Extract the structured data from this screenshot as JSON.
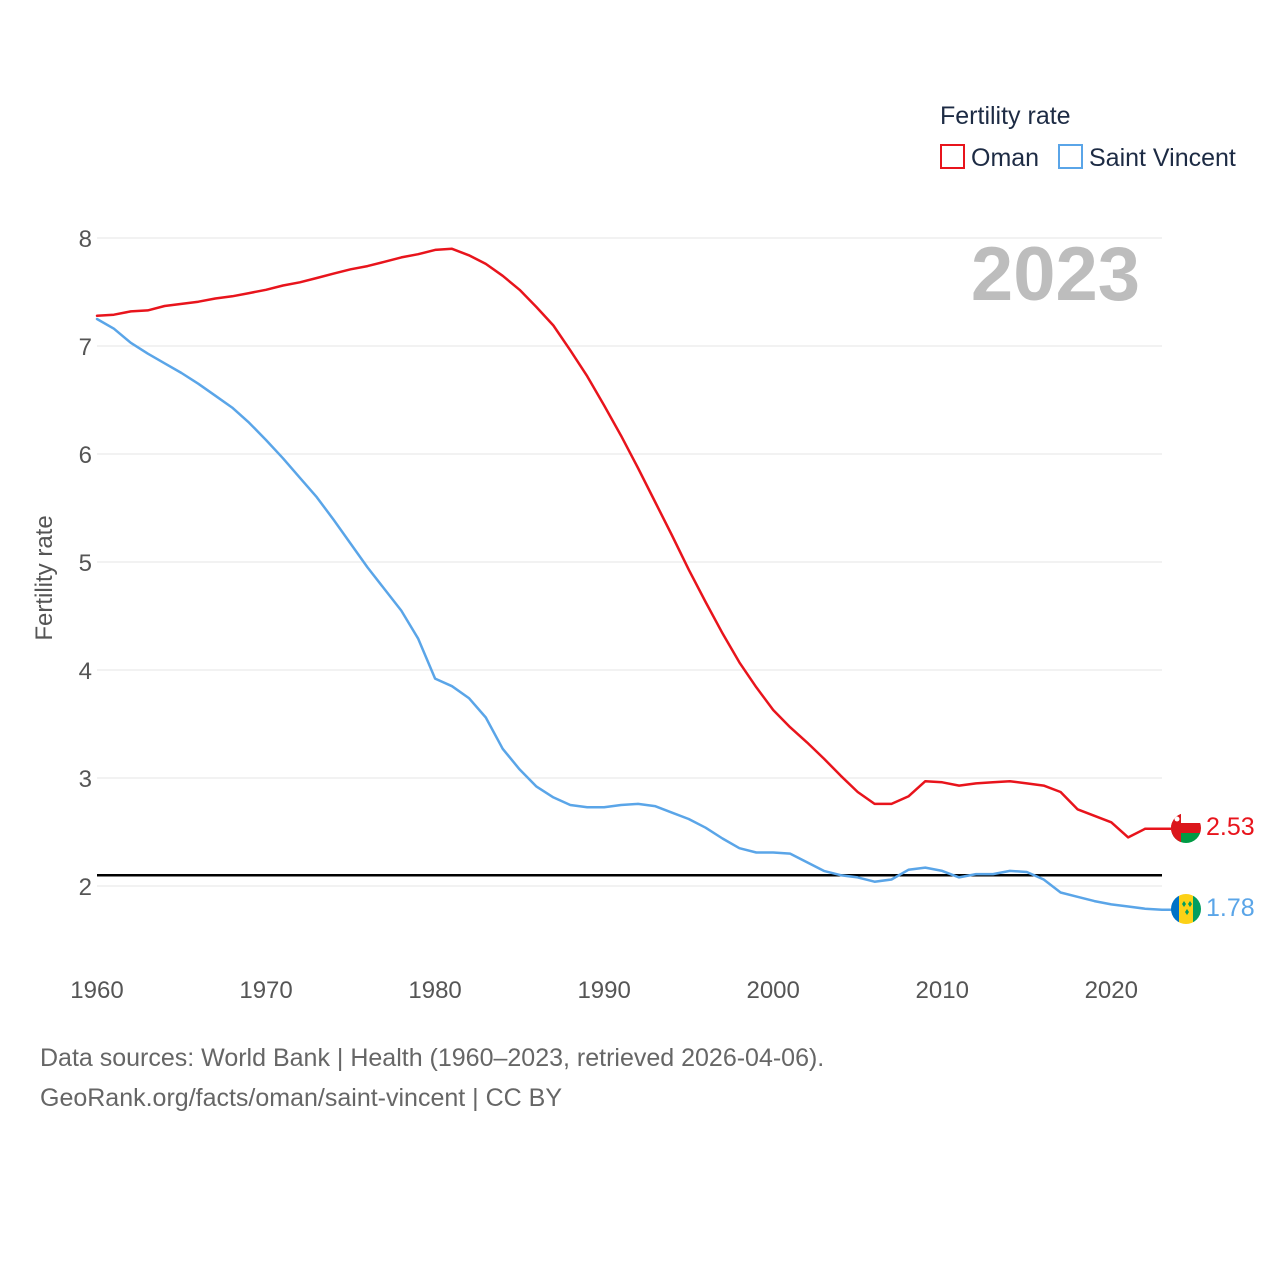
{
  "chart_data": {
    "type": "line",
    "title": "Fertility rate",
    "ylabel": "Fertility rate",
    "xlabel": "",
    "year_label": "2023",
    "xlim": [
      1960,
      2023
    ],
    "ylim": [
      1.5,
      8.3
    ],
    "x_ticks": [
      1960,
      1970,
      1980,
      1990,
      2000,
      2010,
      2020
    ],
    "y_ticks": [
      2,
      3,
      4,
      5,
      6,
      7,
      8
    ],
    "reference_line": 2.1,
    "x": [
      1960,
      1961,
      1962,
      1963,
      1964,
      1965,
      1966,
      1967,
      1968,
      1969,
      1970,
      1971,
      1972,
      1973,
      1974,
      1975,
      1976,
      1977,
      1978,
      1979,
      1980,
      1981,
      1982,
      1983,
      1984,
      1985,
      1986,
      1987,
      1988,
      1989,
      1990,
      1991,
      1992,
      1993,
      1994,
      1995,
      1996,
      1997,
      1998,
      1999,
      2000,
      2001,
      2002,
      2003,
      2004,
      2005,
      2006,
      2007,
      2008,
      2009,
      2010,
      2011,
      2012,
      2013,
      2014,
      2015,
      2016,
      2017,
      2018,
      2019,
      2020,
      2021,
      2022,
      2023
    ],
    "series": [
      {
        "name": "Oman",
        "color": "#e8141c",
        "end_label": "2.53",
        "values": [
          7.28,
          7.29,
          7.32,
          7.33,
          7.37,
          7.39,
          7.41,
          7.44,
          7.46,
          7.49,
          7.52,
          7.56,
          7.59,
          7.63,
          7.67,
          7.71,
          7.74,
          7.78,
          7.82,
          7.85,
          7.89,
          7.9,
          7.84,
          7.76,
          7.65,
          7.52,
          7.36,
          7.19,
          6.96,
          6.72,
          6.45,
          6.17,
          5.87,
          5.56,
          5.25,
          4.93,
          4.63,
          4.34,
          4.07,
          3.84,
          3.63,
          3.47,
          3.33,
          3.18,
          3.02,
          2.87,
          2.76,
          2.76,
          2.83,
          2.97,
          2.96,
          2.93,
          2.95,
          2.96,
          2.97,
          2.95,
          2.93,
          2.87,
          2.71,
          2.65,
          2.59,
          2.45,
          2.53,
          2.53
        ]
      },
      {
        "name": "Saint Vincent",
        "color": "#5aa5e8",
        "end_label": "1.78",
        "values": [
          7.25,
          7.16,
          7.03,
          6.93,
          6.84,
          6.75,
          6.65,
          6.54,
          6.43,
          6.29,
          6.13,
          5.96,
          5.78,
          5.6,
          5.39,
          5.17,
          4.95,
          4.75,
          4.55,
          4.29,
          3.92,
          3.85,
          3.74,
          3.56,
          3.27,
          3.08,
          2.92,
          2.82,
          2.75,
          2.73,
          2.73,
          2.75,
          2.76,
          2.74,
          2.68,
          2.62,
          2.54,
          2.44,
          2.35,
          2.31,
          2.31,
          2.3,
          2.22,
          2.14,
          2.1,
          2.08,
          2.04,
          2.06,
          2.15,
          2.17,
          2.14,
          2.08,
          2.11,
          2.11,
          2.14,
          2.13,
          2.06,
          1.94,
          1.9,
          1.86,
          1.83,
          1.81,
          1.79,
          1.78
        ]
      }
    ]
  },
  "legend": {
    "title": "Fertility rate",
    "items": [
      "Oman",
      "Saint Vincent"
    ]
  },
  "source": {
    "line1": "Data sources: World Bank | Health (1960–2023, retrieved 2026-04-06).",
    "line2": "GeoRank.org/facts/oman/saint-vincent | CC BY"
  }
}
